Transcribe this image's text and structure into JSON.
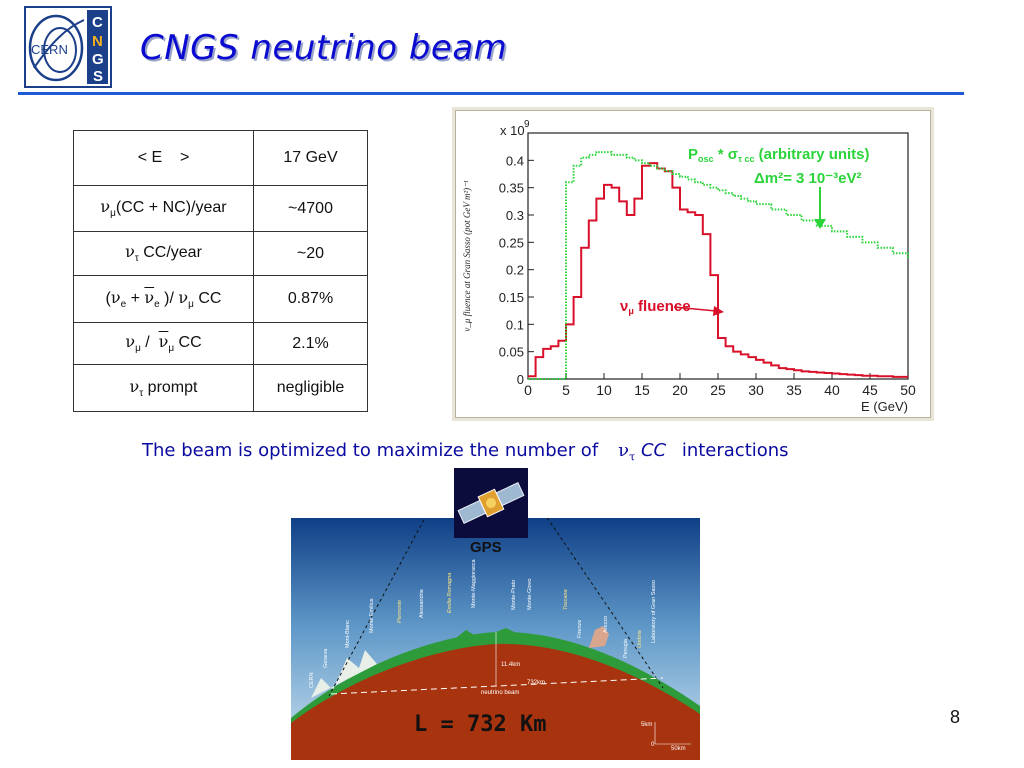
{
  "slide": {
    "title": "CNGS neutrino beam",
    "page_number": "8",
    "logo": {
      "left_text": "CERN",
      "right_letters": [
        "C",
        "N",
        "G",
        "S"
      ]
    }
  },
  "table": {
    "rows": [
      {
        "key_html": "&lt; E &nbsp;&nbsp;&nbsp;&gt;",
        "value": "17 GeV",
        "height": 55
      },
      {
        "key_html": "<span style=\"font-family:'DejaVu Serif',serif\">&nu;</span><sub style=\"font-size:10px\">&mu;</sub>(CC + NC)/year",
        "value": "~4700",
        "height": 46
      },
      {
        "key_html": "<span style=\"font-family:'DejaVu Serif',serif\">&nu;</span><sub style=\"font-size:10px\">&tau;</sub> CC/year",
        "value": "~20",
        "height": 44
      },
      {
        "key_html": "(<span style=\"font-family:'DejaVu Serif',serif\">&nu;</span><sub style=\"font-size:10px\">e</sub> + <span style=\"text-decoration:overline;font-family:'DejaVu Serif',serif\">&nu;</span><sub style=\"font-size:10px\">e</sub> )/ <span style=\"font-family:'DejaVu Serif',serif\">&nu;</span><sub style=\"font-size:10px\">&mu;</sub> CC",
        "value": "0.87%",
        "height": 47
      },
      {
        "key_html": "<span style=\"font-family:'DejaVu Serif',serif\">&nu;</span><sub style=\"font-size:10px\">&mu;</sub> / &nbsp;<span style=\"text-decoration:overline;font-family:'DejaVu Serif',serif\">&nu;</span><sub style=\"font-size:10px\">&mu;</sub> CC",
        "value": "2.1%",
        "height": 42
      },
      {
        "key_html": "<span style=\"font-family:'DejaVu Serif',serif\">&nu;</span><sub style=\"font-size:10px\">&tau;</sub> prompt",
        "value": "negligible",
        "height": 47
      }
    ]
  },
  "caption": {
    "before": "The beam is optimized to maximize the number of",
    "nu": "ν",
    "tau": "τ",
    "cc": "CC",
    "after": "interactions"
  },
  "chart_data": {
    "type": "line",
    "ylabel": "ν_μ fluence at Gran Sasso (pot GeV m²)⁻¹",
    "xlabel": "E (GeV)",
    "y_multiplier_label": "x 10",
    "y_multiplier_exp": "9",
    "xlim": [
      0,
      50
    ],
    "ylim": [
      0,
      0.45
    ],
    "x_ticks": [
      0,
      5,
      10,
      15,
      20,
      25,
      30,
      35,
      40,
      45,
      50
    ],
    "y_ticks": [
      0,
      0.05,
      0.1,
      0.15,
      0.2,
      0.25,
      0.3,
      0.35,
      0.4
    ],
    "y_tick_labels": [
      "0",
      "0.05",
      "0.1",
      "0.15",
      "0.2",
      "0.25",
      "0.3",
      "0.35",
      "0.4"
    ],
    "annotations": {
      "osc_line1": "P",
      "osc_sub": "osc",
      "osc_mid": "* σ",
      "osc_sub2": "τ cc",
      "osc_tail": "(arbitrary units)",
      "dm2": "Δm²= 3 10⁻³eV²",
      "fluence": "ν",
      "fluence_sub": "μ",
      "fluence_tail": "fluence"
    },
    "series": [
      {
        "name": "ν_μ fluence",
        "color": "#d8102a",
        "style": "step",
        "x": [
          0,
          1,
          2,
          3,
          4,
          5,
          6,
          7,
          8,
          9,
          10,
          11,
          12,
          13,
          14,
          15,
          16,
          17,
          18,
          19,
          20,
          21,
          22,
          23,
          24,
          25,
          26,
          27,
          28,
          29,
          30,
          31,
          32,
          33,
          34,
          35,
          36,
          37,
          38,
          39,
          40,
          41,
          42,
          43,
          44,
          45,
          46,
          47,
          48,
          49,
          50
        ],
        "y": [
          0.005,
          0.04,
          0.055,
          0.06,
          0.07,
          0.1,
          0.15,
          0.24,
          0.29,
          0.33,
          0.355,
          0.35,
          0.325,
          0.3,
          0.33,
          0.39,
          0.395,
          0.385,
          0.38,
          0.35,
          0.31,
          0.305,
          0.3,
          0.265,
          0.19,
          0.075,
          0.06,
          0.05,
          0.045,
          0.04,
          0.035,
          0.03,
          0.025,
          0.02,
          0.018,
          0.016,
          0.014,
          0.013,
          0.012,
          0.011,
          0.01,
          0.009,
          0.008,
          0.007,
          0.006,
          0.006,
          0.005,
          0.005,
          0.004,
          0.004,
          0.004
        ]
      },
      {
        "name": "P_osc * σ_τcc",
        "color": "#2bd43a",
        "style": "dotted-step",
        "x": [
          0,
          4,
          5,
          6,
          7,
          8,
          9,
          10,
          11,
          12,
          13,
          14,
          15,
          16,
          17,
          18,
          19,
          20,
          21,
          22,
          23,
          24,
          25,
          26,
          27,
          28,
          29,
          30,
          32,
          34,
          36,
          38,
          40,
          42,
          44,
          46,
          48,
          50
        ],
        "y": [
          0,
          0,
          0.36,
          0.39,
          0.405,
          0.41,
          0.415,
          0.415,
          0.41,
          0.41,
          0.405,
          0.4,
          0.395,
          0.39,
          0.385,
          0.38,
          0.375,
          0.37,
          0.365,
          0.36,
          0.355,
          0.35,
          0.345,
          0.34,
          0.335,
          0.33,
          0.325,
          0.32,
          0.31,
          0.3,
          0.29,
          0.28,
          0.27,
          0.26,
          0.25,
          0.24,
          0.23,
          0.22
        ]
      }
    ]
  },
  "geo": {
    "gps_label": "GPS",
    "L_label": "L = 732 Km",
    "depth_label": "11.4km",
    "distance_label": "732km",
    "beam_label": "neutrino beam",
    "scale_v": "5km",
    "scale_h": "50km",
    "scale_zero": "0",
    "places": [
      "CERN",
      "Geneva",
      "Mont-Blanc",
      "Monte Emilius",
      "Piemonte",
      "Alessandria",
      "Emilia Romagna",
      "Monte-Maggiorasca",
      "Monte-Prato",
      "Monte-Giovo",
      "Toscana",
      "Firenze",
      "Arezzo",
      "Perugia",
      "Umbria",
      "Laboratory of Gran Sasso"
    ]
  }
}
